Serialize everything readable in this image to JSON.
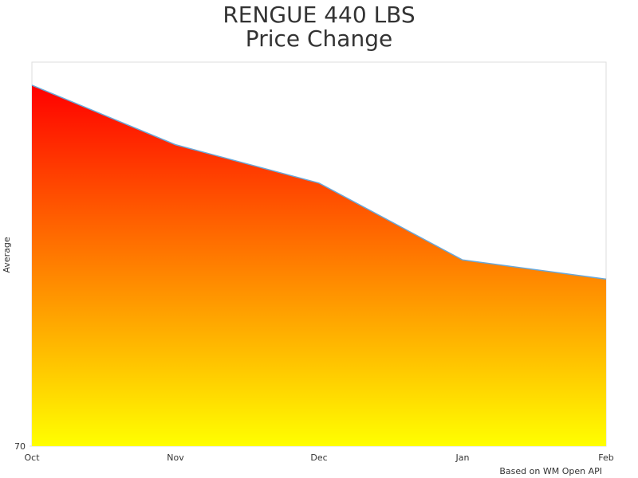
{
  "chart_data": {
    "type": "area",
    "title": [
      "RENGUE 440 LBS",
      "Price Change"
    ],
    "y_label": "Average",
    "credit": "Based on WM Open API",
    "categories": [
      "Oct",
      "Nov",
      "Dec",
      "Jan",
      "Feb"
    ],
    "series": [
      {
        "name": "Average",
        "color": "#6aa8d8",
        "values": [
          88.8,
          85.7,
          83.7,
          79.7,
          78.7
        ]
      }
    ],
    "fill_gradient": [
      "#ff0000",
      "#ffff00"
    ],
    "ylim": [
      70,
      90
    ],
    "yticks": [
      70
    ]
  }
}
